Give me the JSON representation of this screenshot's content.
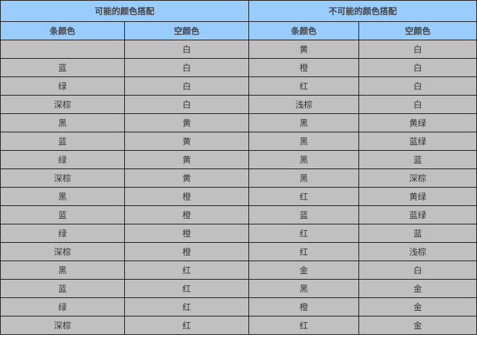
{
  "headers": {
    "possible": "可能的颜色搭配",
    "impossible": "不可能的颜色搭配",
    "sub": [
      "条颜色",
      "空颜色",
      "条颜色",
      "空颜色"
    ]
  },
  "rows": [
    [
      "",
      "白",
      "黄",
      "白"
    ],
    [
      "蓝",
      "白",
      "橙",
      "白"
    ],
    [
      "绿",
      "白",
      "红",
      "白"
    ],
    [
      "深棕",
      "白",
      "浅棕",
      "白"
    ],
    [
      "黑",
      "黄",
      "黑",
      "黄绿"
    ],
    [
      "蓝",
      "黄",
      "黑",
      "蓝绿"
    ],
    [
      "绿",
      "黄",
      "黑",
      "蓝"
    ],
    [
      "深棕",
      "黄",
      "黑",
      "深棕"
    ],
    [
      "黑",
      "橙",
      "红",
      "黄绿"
    ],
    [
      "蓝",
      "橙",
      "蓝",
      "蓝绿"
    ],
    [
      "绿",
      "橙",
      "红",
      "蓝"
    ],
    [
      "深棕",
      "橙",
      "红",
      "浅棕"
    ],
    [
      "黑",
      "红",
      "金",
      "白"
    ],
    [
      "蓝",
      "红",
      "黑",
      "金"
    ],
    [
      "绿",
      "红",
      "橙",
      "金"
    ],
    [
      "深棕",
      "红",
      "红",
      "金"
    ]
  ],
  "colors": {
    "header_bg": "#99ccff",
    "cell_bg": "#c0c0c0",
    "border": "#1a1a1a"
  }
}
